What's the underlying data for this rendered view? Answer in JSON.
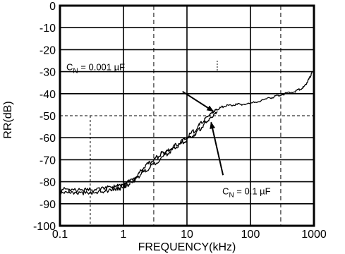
{
  "chart_data": {
    "type": "line",
    "title": "",
    "xlabel": "FREQUENCY(kHz)",
    "ylabel": "RR(dB)",
    "x_scale": "log",
    "xlim": [
      0.1,
      1000
    ],
    "ylim": [
      -100,
      0
    ],
    "x_ticks": [
      "0.1",
      "1",
      "10",
      "100",
      "1000"
    ],
    "x_tick_values": [
      0.1,
      1,
      10,
      100,
      1000
    ],
    "y_ticks": [
      "0",
      "-10",
      "-20",
      "-30",
      "-40",
      "-50",
      "-60",
      "-70",
      "-80",
      "-90",
      "-100"
    ],
    "y_tick_values": [
      0,
      -10,
      -20,
      -30,
      -40,
      -50,
      -60,
      -70,
      -80,
      -90,
      -100
    ],
    "grid": true,
    "series": [
      {
        "name": "CN = 0.001 µF",
        "x": [
          0.1,
          0.2,
          0.4,
          0.7,
          1.0,
          1.5,
          2.0,
          3.0,
          4.0,
          5.0,
          7.0,
          10,
          15,
          20,
          25,
          30,
          40,
          60,
          100,
          200,
          300,
          500,
          700,
          850,
          950
        ],
        "y": [
          -84,
          -84.5,
          -84,
          -83,
          -82,
          -79,
          -74,
          -70,
          -67,
          -66,
          -63,
          -60,
          -55,
          -51,
          -48.5,
          -47,
          -45.5,
          -45,
          -44.5,
          -42,
          -40.5,
          -39,
          -37,
          -33,
          -30
        ]
      },
      {
        "name": "CN = 0.1 µF",
        "x": [
          0.1,
          0.2,
          0.4,
          0.7,
          1.0,
          1.5,
          2.0,
          3.0,
          5.0,
          7.0,
          10,
          15,
          20,
          25,
          30
        ],
        "y": [
          -84,
          -84.5,
          -84,
          -83,
          -82,
          -79,
          -76,
          -72,
          -67,
          -64,
          -61,
          -57,
          -53,
          -50.5,
          -48
        ]
      }
    ],
    "annotations": [
      {
        "label": "CN = 0.001 µF",
        "prefix": "C",
        "sub": "N",
        "rest": " = 0.001 µF",
        "text_x": 0.126,
        "text_y": -29.4,
        "arrow_from": [
          8.5,
          -39
        ],
        "arrow_to": [
          26,
          -48
        ]
      },
      {
        "label": "CN = 0.1 µF",
        "prefix": "C",
        "sub": "N",
        "rest": " = 0.1 µF",
        "text_x": 36,
        "text_y": -85.7,
        "arrow_from": [
          37,
          -77
        ],
        "arrow_to": [
          24,
          -53
        ]
      }
    ]
  }
}
